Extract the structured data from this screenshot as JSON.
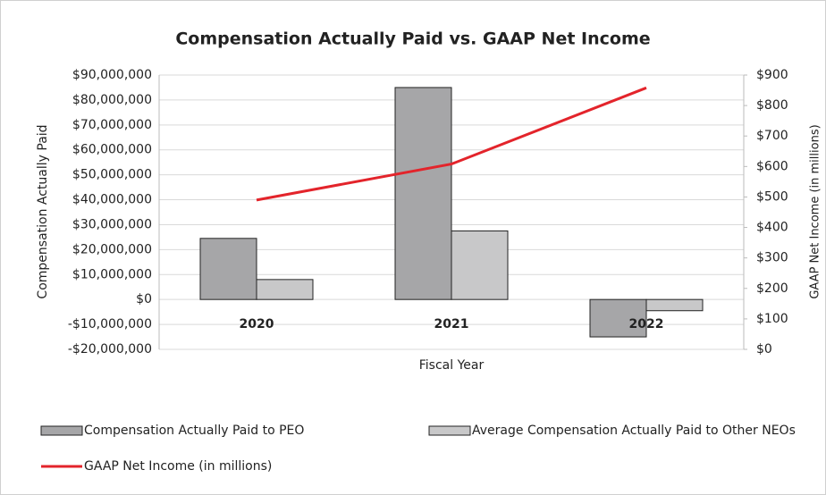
{
  "chart_data": {
    "type": "bar",
    "title": "Compensation Actually Paid vs. GAAP Net Income",
    "x_label": "Fiscal Year",
    "y_label": "Compensation Actually Paid",
    "y2_label": "GAAP Net Income (in millions)",
    "categories": [
      "2020",
      "2021",
      "2022"
    ],
    "series": [
      {
        "name": "Compensation Actually Paid to PEO",
        "type": "bar",
        "color": "#a6a6a8",
        "values": [
          24500000,
          85000000,
          -15000000
        ]
      },
      {
        "name": "Average Compensation Actually Paid to Other NEOs",
        "type": "bar",
        "color": "#c8c8c9",
        "values": [
          8000000,
          27500000,
          -4500000
        ]
      },
      {
        "name": "GAAP Net Income (in millions)",
        "type": "line",
        "axis": "y2",
        "color": "#e3242b",
        "values": [
          490,
          608,
          858
        ]
      }
    ],
    "ylim": [
      -20000000,
      90000000
    ],
    "yticks": [
      {
        "value": -20000000,
        "label": "-$20,000,000"
      },
      {
        "value": -10000000,
        "label": "-$10,000,000"
      },
      {
        "value": 0,
        "label": "$0"
      },
      {
        "value": 10000000,
        "label": "$10,000,000"
      },
      {
        "value": 20000000,
        "label": "$20,000,000"
      },
      {
        "value": 30000000,
        "label": "$30,000,000"
      },
      {
        "value": 40000000,
        "label": "$40,000,000"
      },
      {
        "value": 50000000,
        "label": "$50,000,000"
      },
      {
        "value": 60000000,
        "label": "$60,000,000"
      },
      {
        "value": 70000000,
        "label": "$70,000,000"
      },
      {
        "value": 80000000,
        "label": "$80,000,000"
      },
      {
        "value": 90000000,
        "label": "$90,000,000"
      }
    ],
    "y2lim": [
      0,
      900
    ],
    "y2ticks": [
      {
        "value": 0,
        "label": "$0"
      },
      {
        "value": 100,
        "label": "$100"
      },
      {
        "value": 200,
        "label": "$200"
      },
      {
        "value": 300,
        "label": "$300"
      },
      {
        "value": 400,
        "label": "$400"
      },
      {
        "value": 500,
        "label": "$500"
      },
      {
        "value": 600,
        "label": "$600"
      },
      {
        "value": 700,
        "label": "$700"
      },
      {
        "value": 800,
        "label": "$800"
      },
      {
        "value": 900,
        "label": "$900"
      }
    ],
    "grid": true
  }
}
